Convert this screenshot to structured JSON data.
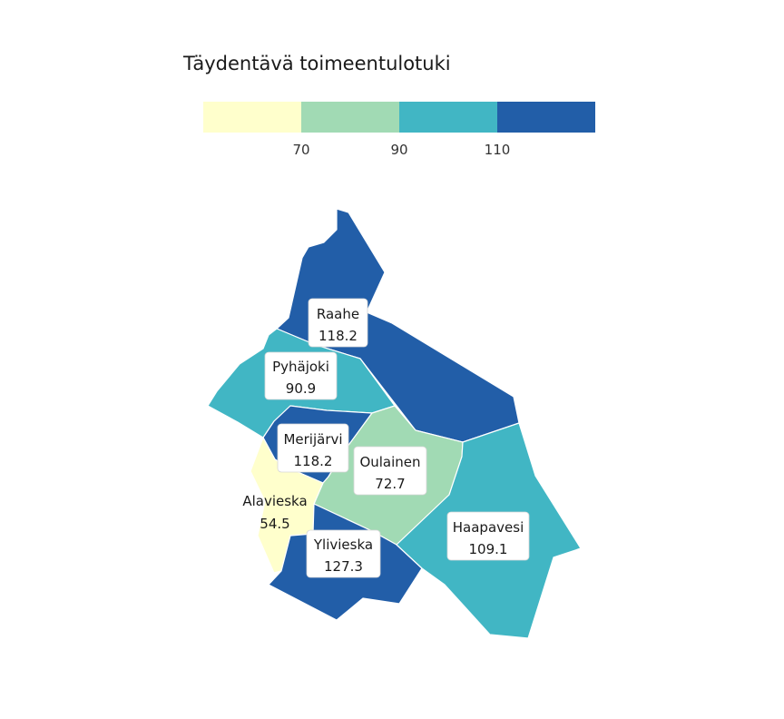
{
  "legend": {
    "title": "Täydentävä toimeentulotuki",
    "bins": [
      {
        "color": "#ffffcc"
      },
      {
        "color": "#a1dab4"
      },
      {
        "color": "#41b6c4"
      },
      {
        "color": "#225ea8"
      }
    ],
    "breaks": [
      "70",
      "90",
      "110"
    ]
  },
  "regions": [
    {
      "name": "Raahe",
      "value": "118.2",
      "color": "#225ea8"
    },
    {
      "name": "Pyhäjoki",
      "value": "90.9",
      "color": "#41b6c4"
    },
    {
      "name": "Merijärvi",
      "value": "118.2",
      "color": "#225ea8"
    },
    {
      "name": "Oulainen",
      "value": "72.7",
      "color": "#a1dab4"
    },
    {
      "name": "Alavieska",
      "value": "54.5",
      "color": "#ffffcc"
    },
    {
      "name": "Ylivieska",
      "value": "127.3",
      "color": "#225ea8"
    },
    {
      "name": "Haapavesi",
      "value": "109.1",
      "color": "#41b6c4"
    }
  ]
}
